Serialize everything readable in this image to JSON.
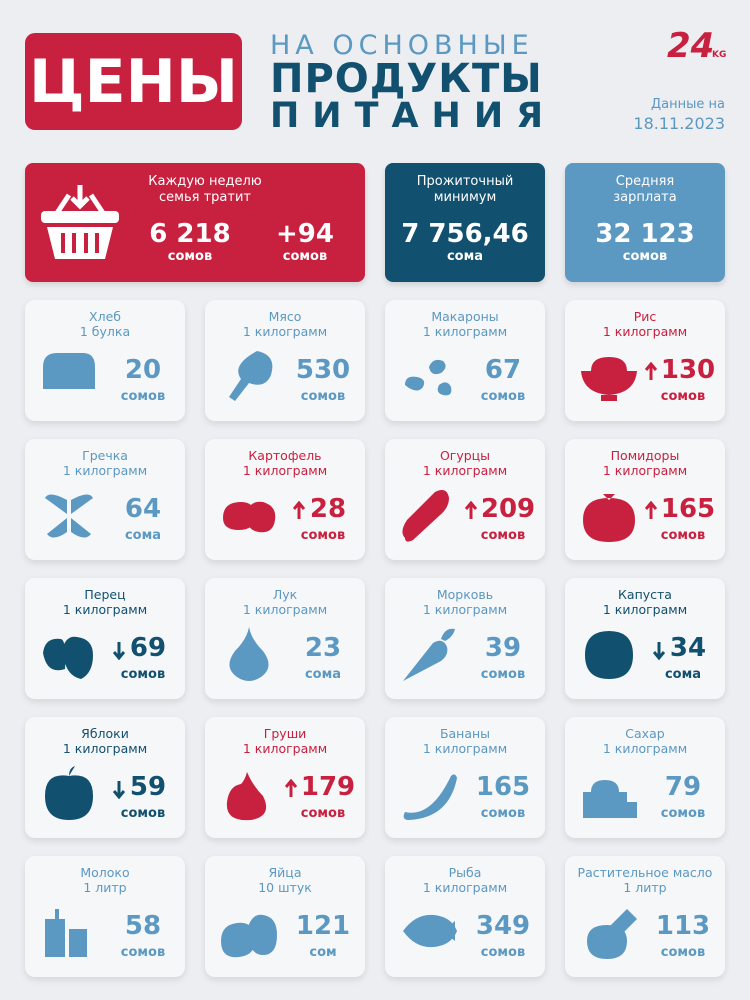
{
  "header": {
    "title": "ЦЕНЫ",
    "subtitle": [
      "НА ОСНОВНЫЕ",
      "ПРОДУКТЫ",
      "ПИТАНИЯ"
    ],
    "logo": "24",
    "logo_suffix": "KG",
    "date_label": "Данные на",
    "date": "18.11.2023"
  },
  "summary": [
    {
      "label": [
        "Каждую неделю",
        "семья тратит"
      ],
      "value": "6 218",
      "unit": "сомов",
      "change": "+94",
      "change_unit": "сомов",
      "color": "#c8203f"
    },
    {
      "label": [
        "Прожиточный",
        "минимум"
      ],
      "value": "7 756,46",
      "unit": "сома",
      "color": "#12506f"
    },
    {
      "label": [
        "Средняя",
        "зарплата"
      ],
      "value": "32 123",
      "unit": "сомов",
      "color": "#5b98c2"
    }
  ],
  "colors": {
    "up": "#c8203f",
    "down": "#12506f",
    "none": "#5b98c2"
  },
  "items": [
    {
      "name": "Хлеб",
      "qty": "1 булка",
      "price": 20,
      "unit": "сомов",
      "trend": "none"
    },
    {
      "name": "Мясо",
      "qty": "1 килограмм",
      "price": 530,
      "unit": "сомов",
      "trend": "none"
    },
    {
      "name": "Макароны",
      "qty": "1 килограмм",
      "price": 67,
      "unit": "сомов",
      "trend": "none"
    },
    {
      "name": "Рис",
      "qty": "1 килограмм",
      "price": 130,
      "unit": "сомов",
      "trend": "up"
    },
    {
      "name": "Гречка",
      "qty": "1 килограмм",
      "price": 64,
      "unit": "сома",
      "trend": "none"
    },
    {
      "name": "Картофель",
      "qty": "1 килограмм",
      "price": 28,
      "unit": "сомов",
      "trend": "up"
    },
    {
      "name": "Огурцы",
      "qty": "1 килограмм",
      "price": 209,
      "unit": "сомов",
      "trend": "up"
    },
    {
      "name": "Помидоры",
      "qty": "1 килограмм",
      "price": 165,
      "unit": "сомов",
      "trend": "up"
    },
    {
      "name": "Перец",
      "qty": "1 килограмм",
      "price": 69,
      "unit": "сомов",
      "trend": "down"
    },
    {
      "name": "Лук",
      "qty": "1 килограмм",
      "price": 23,
      "unit": "сома",
      "trend": "none"
    },
    {
      "name": "Морковь",
      "qty": "1 килограмм",
      "price": 39,
      "unit": "сомов",
      "trend": "none"
    },
    {
      "name": "Капуста",
      "qty": "1 килограмм",
      "price": 34,
      "unit": "сома",
      "trend": "down"
    },
    {
      "name": "Яблоки",
      "qty": "1 килограмм",
      "price": 59,
      "unit": "сомов",
      "trend": "down"
    },
    {
      "name": "Груши",
      "qty": "1 килограмм",
      "price": 179,
      "unit": "сомов",
      "trend": "up"
    },
    {
      "name": "Бананы",
      "qty": "1 килограмм",
      "price": 165,
      "unit": "сомов",
      "trend": "none"
    },
    {
      "name": "Сахар",
      "qty": "1 килограмм",
      "price": 79,
      "unit": "сомов",
      "trend": "none"
    },
    {
      "name": "Молоко",
      "qty": "1 литр",
      "price": 58,
      "unit": "сомов",
      "trend": "none"
    },
    {
      "name": "Яйца",
      "qty": "10 штук",
      "price": 121,
      "unit": "сом",
      "trend": "none"
    },
    {
      "name": "Рыба",
      "qty": "1 килограмм",
      "price": 349,
      "unit": "сомов",
      "trend": "none"
    },
    {
      "name": "Растительное масло",
      "qty": "1 литр",
      "price": 113,
      "unit": "сомов",
      "trend": "none"
    }
  ]
}
